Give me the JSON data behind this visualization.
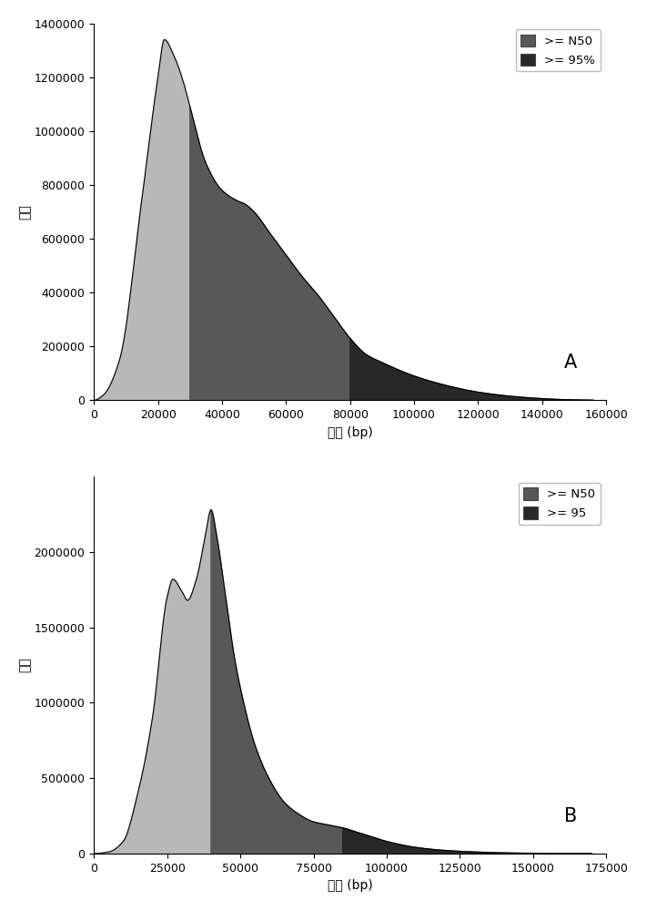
{
  "chart_A": {
    "label": "A",
    "xlabel": "读长 (bp)",
    "ylabel": "数量",
    "xlim": [
      0,
      160000
    ],
    "ylim": [
      0,
      1400000
    ],
    "yticks": [
      0,
      200000,
      400000,
      600000,
      800000,
      1000000,
      1200000,
      1400000
    ],
    "xticks": [
      0,
      20000,
      40000,
      60000,
      80000,
      100000,
      120000,
      140000,
      160000
    ],
    "n50_cutoff": 30000,
    "pct95_cutoff": 80000,
    "legend_labels": [
      ">= N50",
      ">= 95%"
    ],
    "color_light": "#b8b8b8",
    "color_mid": "#585858",
    "color_dark": "#282828"
  },
  "chart_B": {
    "label": "B",
    "xlabel": "读长 (bp)",
    "ylabel": "数量",
    "xlim": [
      0,
      175000
    ],
    "ylim": [
      0,
      2500000
    ],
    "yticks": [
      0,
      500000,
      1000000,
      1500000,
      2000000
    ],
    "xticks": [
      0,
      25000,
      50000,
      75000,
      100000,
      125000,
      150000,
      175000
    ],
    "n50_cutoff": 40000,
    "pct95_cutoff": 85000,
    "legend_labels": [
      ">= N50",
      ">= 95"
    ],
    "color_light": "#b8b8b8",
    "color_mid": "#585858",
    "color_dark": "#282828"
  }
}
